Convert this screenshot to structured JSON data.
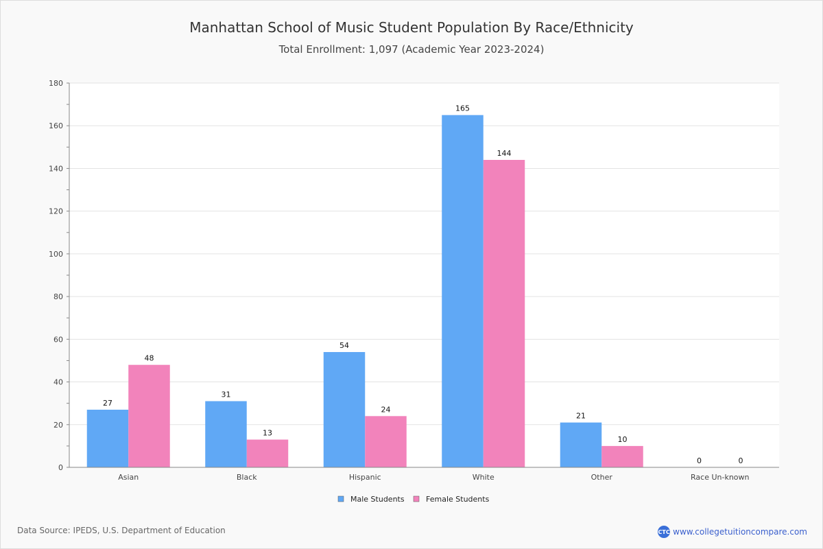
{
  "chart_data": {
    "type": "bar",
    "title": "Manhattan School of Music Student Population By Race/Ethnicity",
    "subtitle": "Total Enrollment: 1,097 (Academic Year 2023-2024)",
    "categories": [
      "Asian",
      "Black",
      "Hispanic",
      "White",
      "Other",
      "Race Un-known"
    ],
    "series": [
      {
        "name": "Male Students",
        "color": "#60a8f5",
        "values": [
          27,
          31,
          54,
          165,
          21,
          0
        ]
      },
      {
        "name": "Female Students",
        "color": "#f283bb",
        "values": [
          48,
          13,
          24,
          144,
          10,
          0
        ]
      }
    ],
    "ylim": [
      0,
      180
    ],
    "yticks": [
      0,
      20,
      40,
      60,
      80,
      100,
      120,
      140,
      160,
      180
    ],
    "grid": true,
    "legend": "bottom-center",
    "xlabel": "",
    "ylabel": ""
  },
  "footer": {
    "source": "Data Source: IPEDS, U.S. Department of Education",
    "brand": "www.collegetuitioncompare.com",
    "logo_text": "CTC"
  }
}
